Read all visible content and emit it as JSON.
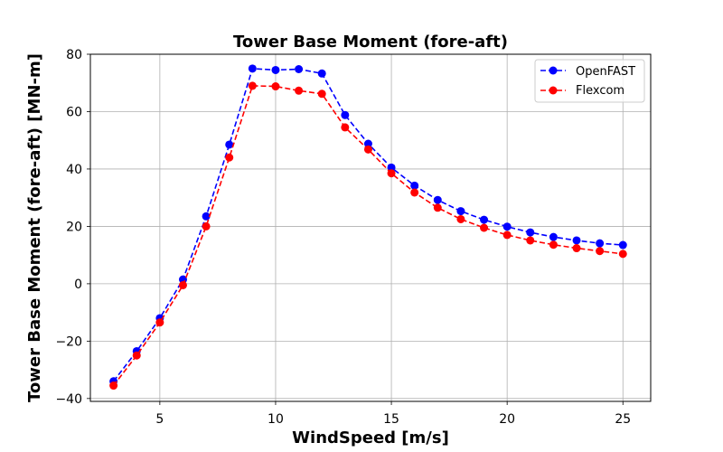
{
  "chart_data": {
    "type": "line",
    "title": "Tower Base Moment (fore-aft)",
    "xlabel": "WindSpeed [m/s]",
    "ylabel": "Tower Base Moment (fore-aft) [MN-m]",
    "xlim": [
      2,
      26.2
    ],
    "ylim": [
      -41,
      80
    ],
    "xticks": [
      5,
      10,
      15,
      20,
      25
    ],
    "yticks": [
      -40,
      -20,
      0,
      20,
      40,
      60,
      80
    ],
    "grid": true,
    "legend_position": "top-right",
    "x": [
      3,
      4,
      5,
      6,
      7,
      8,
      9,
      10,
      11,
      12,
      13,
      14,
      15,
      16,
      17,
      18,
      19,
      20,
      21,
      22,
      23,
      24,
      25
    ],
    "series": [
      {
        "name": "OpenFAST",
        "color": "#0000ff",
        "values": [
          -34.0,
          -23.5,
          -12.0,
          1.5,
          23.5,
          48.5,
          75.0,
          74.5,
          74.8,
          73.3,
          58.8,
          48.8,
          40.5,
          34.2,
          29.2,
          25.3,
          22.3,
          19.9,
          17.9,
          16.3,
          15.1,
          14.1,
          13.5
        ]
      },
      {
        "name": "Flexcom",
        "color": "#ff0000",
        "values": [
          -35.5,
          -25.0,
          -13.5,
          -0.5,
          20.0,
          44.0,
          69.0,
          68.8,
          67.3,
          66.2,
          54.5,
          46.8,
          38.5,
          31.8,
          26.5,
          22.5,
          19.5,
          17.0,
          15.1,
          13.6,
          12.4,
          11.4,
          10.4
        ]
      }
    ]
  }
}
